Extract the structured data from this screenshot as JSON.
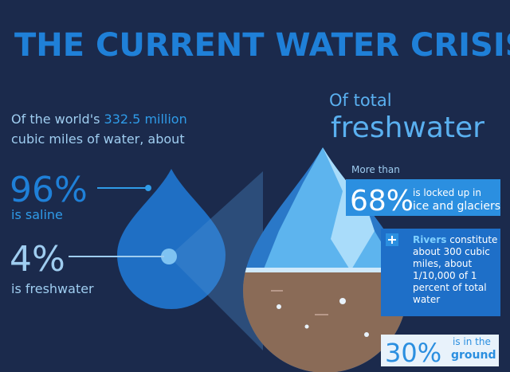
{
  "title": "THE CURRENT WATER CRISIS",
  "intro": {
    "prefix": "Of the world's",
    "amount": "332.5 million",
    "suffix": "cubic miles of water, about"
  },
  "saline": {
    "percent": "96%",
    "label": "is saline"
  },
  "fresh": {
    "percent": "4%",
    "label": "is freshwater"
  },
  "freshwater_header": {
    "line1": "Of total",
    "line2": "freshwater"
  },
  "ice": {
    "lead": "More than",
    "percent": "68%",
    "label_line1": "is locked up in",
    "label_line2": "ice and glaciers"
  },
  "rivers": {
    "highlight": "Rivers",
    "lines": [
      "constitute",
      "about 300 cubic",
      "miles, about",
      "1/10,000 of 1",
      "percent of total",
      "water"
    ]
  },
  "ground": {
    "percent": "30%",
    "label_line1": "is in the",
    "label_line2": "ground"
  }
}
